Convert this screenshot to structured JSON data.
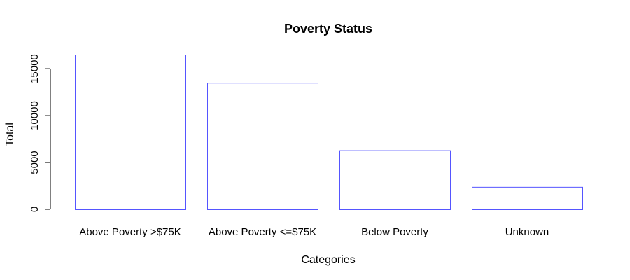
{
  "chart_data": {
    "type": "bar",
    "title": "Poverty Status",
    "xlabel": "Categories",
    "ylabel": "Total",
    "categories": [
      "Above Poverty >$75K",
      "Above Poverty <=$75K",
      "Below Poverty",
      "Unknown"
    ],
    "values": [
      16500,
      13500,
      6300,
      2400
    ],
    "ylim": [
      0,
      16500
    ],
    "yticks": [
      0,
      5000,
      10000,
      15000
    ],
    "grid": false,
    "bar_fill": "#ffffff",
    "bar_border_color": "#5555ff",
    "hatch_color": "#c8c8c8",
    "hatch_density": [
      8,
      16,
      24,
      32
    ]
  }
}
